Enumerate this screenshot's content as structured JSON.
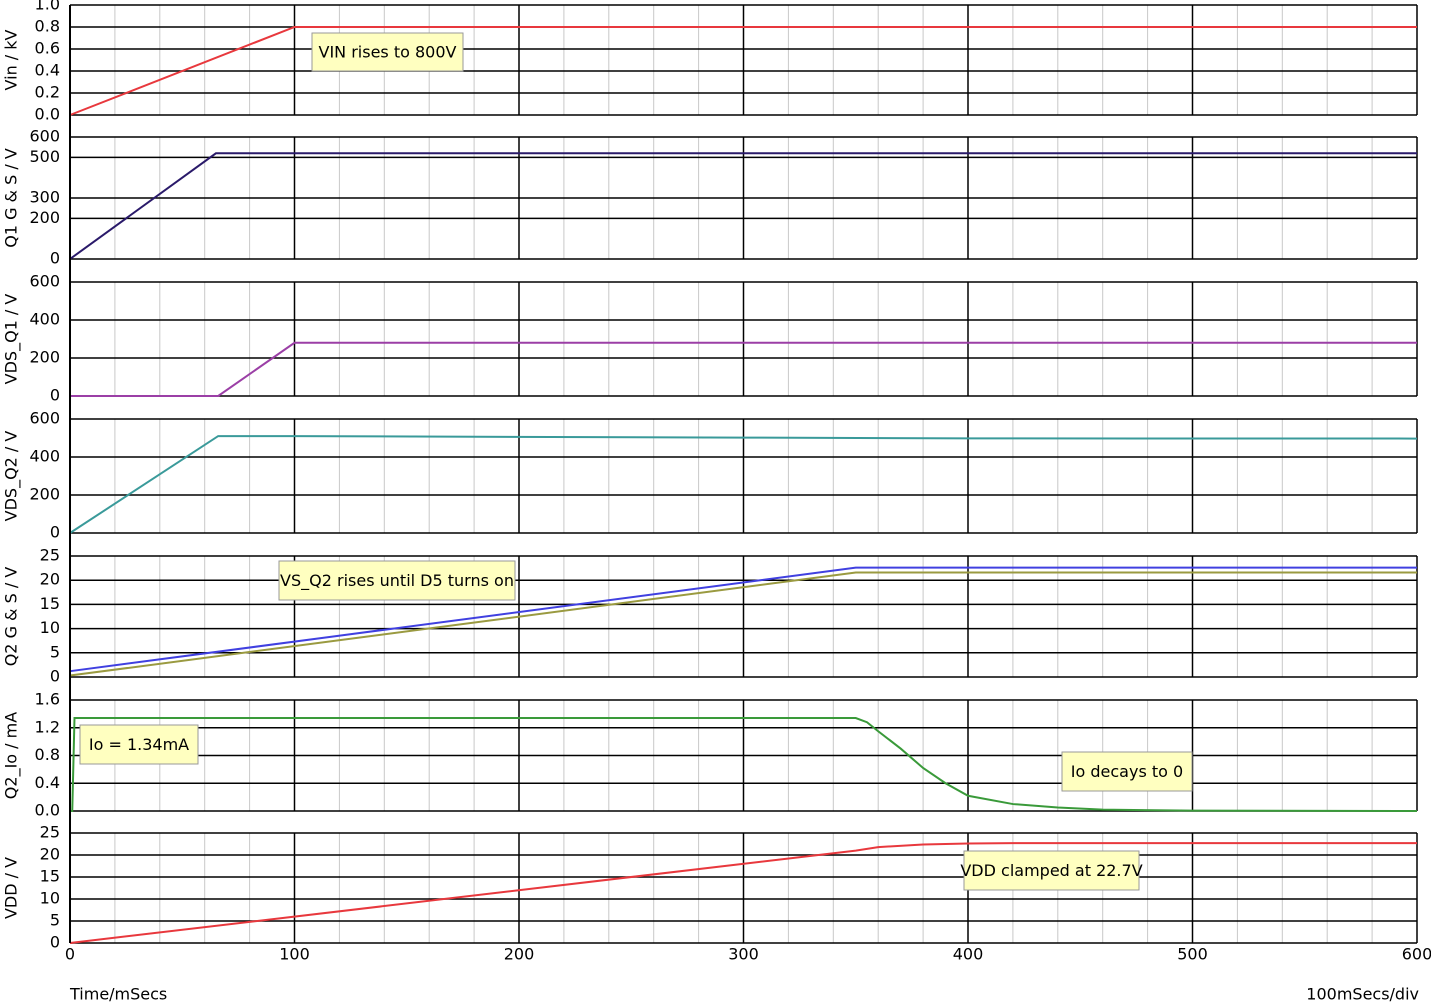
{
  "chart_data": [
    {
      "type": "line",
      "ylabel": "Vin / kV",
      "xlim": [
        0,
        600
      ],
      "ylim": [
        0,
        1
      ],
      "yticks": [
        {
          "value": 0,
          "label": "0.0"
        },
        0.2,
        0.4,
        0.6,
        0.8,
        {
          "value": 1,
          "label": "1.0"
        }
      ],
      "x": [
        0,
        100,
        600
      ],
      "series": [
        {
          "color": "#e8383d",
          "values": [
            0,
            0.8,
            0.8
          ]
        }
      ],
      "annotations": [
        "VIN rises to 800V"
      ]
    },
    {
      "type": "line",
      "ylabel": "Q1 G & S / V",
      "xlim": [
        0,
        600
      ],
      "ylim": [
        0,
        600
      ],
      "yticks": [
        0,
        200,
        300,
        500,
        600
      ],
      "x": [
        0,
        65,
        600
      ],
      "series": [
        {
          "color": "#2a1a6a",
          "values": [
            0,
            520,
            520
          ]
        }
      ]
    },
    {
      "type": "line",
      "ylabel": "VDS_Q1 / V",
      "xlim": [
        0,
        600
      ],
      "ylim": [
        0,
        600
      ],
      "yticks": [
        0,
        200,
        400,
        600
      ],
      "x": [
        0,
        66,
        100,
        600
      ],
      "series": [
        {
          "color": "#9b3fa6",
          "values": [
            0,
            0,
            280,
            280
          ]
        }
      ]
    },
    {
      "type": "line",
      "ylabel": "VDS_Q2 / V",
      "xlim": [
        0,
        600
      ],
      "ylim": [
        0,
        600
      ],
      "yticks": [
        0,
        200,
        400,
        600
      ],
      "x": [
        0,
        66,
        100,
        300,
        400,
        600
      ],
      "series": [
        {
          "color": "#3a9a9a",
          "values": [
            0,
            510,
            510,
            502,
            498,
            497
          ]
        }
      ]
    },
    {
      "type": "line",
      "ylabel": "Q2 G & S / V",
      "xlim": [
        0,
        600
      ],
      "ylim": [
        0,
        25
      ],
      "yticks": [
        0,
        5,
        10,
        15,
        20,
        25
      ],
      "x": [
        0,
        350,
        600
      ],
      "series": [
        {
          "color": "#4040e0",
          "values": [
            1.2,
            22.6,
            22.6
          ]
        },
        {
          "color": "#9a9a40",
          "values": [
            0.3,
            21.6,
            21.6
          ]
        }
      ],
      "annotations": [
        "VS_Q2 rises until D5 turns on"
      ]
    },
    {
      "type": "line",
      "ylabel": "Q2_Io / mA",
      "xlim": [
        0,
        600
      ],
      "ylim": [
        0,
        1.6
      ],
      "yticks": [
        {
          "value": 0,
          "label": "0.0"
        },
        0.4,
        0.8,
        1.2,
        1.6
      ],
      "x": [
        0,
        1,
        2,
        345,
        350,
        355,
        360,
        370,
        380,
        390,
        400,
        420,
        440,
        460,
        500,
        600
      ],
      "series": [
        {
          "color": "#3a9a3a",
          "values": [
            0,
            0,
            1.34,
            1.34,
            1.34,
            1.28,
            1.15,
            0.9,
            0.62,
            0.4,
            0.22,
            0.1,
            0.05,
            0.02,
            0.005,
            0
          ]
        }
      ],
      "annotations": [
        "Io = 1.34mA",
        "Io decays to 0"
      ]
    },
    {
      "type": "line",
      "ylabel": "VDD / V",
      "xlim": [
        0,
        600
      ],
      "ylim": [
        0,
        25
      ],
      "yticks": [
        0,
        5,
        10,
        15,
        20,
        25
      ],
      "x": [
        0,
        350,
        360,
        380,
        400,
        420,
        600
      ],
      "series": [
        {
          "color": "#e8383d",
          "values": [
            0,
            21,
            21.8,
            22.4,
            22.6,
            22.7,
            22.7
          ]
        }
      ],
      "annotations": [
        "VDD clamped at 22.7V"
      ],
      "xticks": [
        0,
        100,
        200,
        300,
        400,
        500,
        600
      ],
      "xlabel": "Time/mSecs",
      "x_scale_note": "100mSecs/div"
    }
  ]
}
